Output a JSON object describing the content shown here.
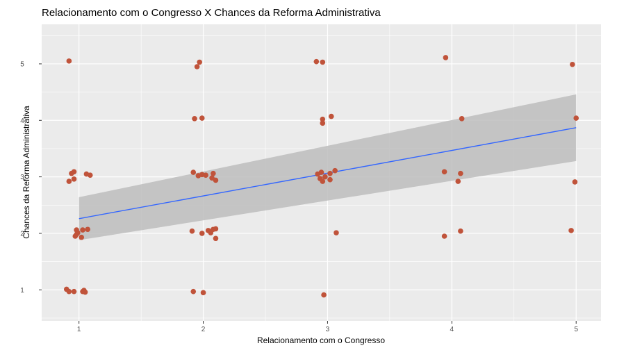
{
  "chart_data": {
    "type": "scatter",
    "title": "Relacionamento com o Congresso X Chances da Reforma Administrativa",
    "xlabel": "Relacionamento com o Congresso",
    "ylabel": "Chances da Reforma Administrativa",
    "xlim": [
      0.7,
      5.2
    ],
    "ylim": [
      0.45,
      5.7
    ],
    "x_ticks": [
      "1",
      "2",
      "3",
      "4",
      "5"
    ],
    "y_ticks": [
      "1",
      "2",
      "3",
      "4",
      "5"
    ],
    "grid": true,
    "colors": {
      "panel": "#ebebeb",
      "grid": "#ffffff",
      "points": "#c0533a",
      "fit_line": "#3366ff",
      "ribbon": "#bdbdbd"
    },
    "fit": {
      "method": "linear",
      "x": [
        1,
        5
      ],
      "y": [
        2.26,
        3.87
      ],
      "ci_lower": [
        1.88,
        3.28
      ],
      "ci_upper": [
        2.64,
        4.46
      ]
    },
    "points": [
      {
        "x": 0.92,
        "y": 5.05
      },
      {
        "x": 0.92,
        "y": 2.92
      },
      {
        "x": 0.94,
        "y": 3.06
      },
      {
        "x": 0.96,
        "y": 3.09
      },
      {
        "x": 0.96,
        "y": 2.96
      },
      {
        "x": 0.97,
        "y": 1.95
      },
      {
        "x": 0.98,
        "y": 2.06
      },
      {
        "x": 0.98,
        "y": 1.98
      },
      {
        "x": 0.99,
        "y": 2.01
      },
      {
        "x": 1.02,
        "y": 1.93
      },
      {
        "x": 1.03,
        "y": 2.06
      },
      {
        "x": 1.07,
        "y": 2.07
      },
      {
        "x": 1.06,
        "y": 3.05
      },
      {
        "x": 1.09,
        "y": 3.03
      },
      {
        "x": 0.9,
        "y": 1.01
      },
      {
        "x": 0.92,
        "y": 0.97
      },
      {
        "x": 0.96,
        "y": 0.97
      },
      {
        "x": 1.03,
        "y": 0.97
      },
      {
        "x": 1.04,
        "y": 0.99
      },
      {
        "x": 1.05,
        "y": 0.96
      },
      {
        "x": 1.97,
        "y": 5.03
      },
      {
        "x": 1.95,
        "y": 4.95
      },
      {
        "x": 1.93,
        "y": 4.03
      },
      {
        "x": 1.99,
        "y": 4.04
      },
      {
        "x": 1.92,
        "y": 3.08
      },
      {
        "x": 1.96,
        "y": 3.02
      },
      {
        "x": 1.99,
        "y": 3.04
      },
      {
        "x": 2.02,
        "y": 3.03
      },
      {
        "x": 2.07,
        "y": 2.98
      },
      {
        "x": 2.08,
        "y": 3.06
      },
      {
        "x": 2.1,
        "y": 2.94
      },
      {
        "x": 1.91,
        "y": 2.04
      },
      {
        "x": 1.99,
        "y": 2.0
      },
      {
        "x": 2.04,
        "y": 2.05
      },
      {
        "x": 2.06,
        "y": 2.01
      },
      {
        "x": 2.08,
        "y": 2.07
      },
      {
        "x": 2.1,
        "y": 2.08
      },
      {
        "x": 2.1,
        "y": 1.91
      },
      {
        "x": 1.92,
        "y": 0.97
      },
      {
        "x": 2.0,
        "y": 0.95
      },
      {
        "x": 2.91,
        "y": 5.04
      },
      {
        "x": 2.96,
        "y": 5.03
      },
      {
        "x": 2.96,
        "y": 4.02
      },
      {
        "x": 2.96,
        "y": 3.95
      },
      {
        "x": 3.03,
        "y": 4.07
      },
      {
        "x": 2.92,
        "y": 3.05
      },
      {
        "x": 2.95,
        "y": 3.08
      },
      {
        "x": 2.94,
        "y": 2.97
      },
      {
        "x": 2.96,
        "y": 2.92
      },
      {
        "x": 2.98,
        "y": 3.0
      },
      {
        "x": 3.02,
        "y": 3.06
      },
      {
        "x": 3.02,
        "y": 2.95
      },
      {
        "x": 3.06,
        "y": 3.11
      },
      {
        "x": 3.07,
        "y": 2.01
      },
      {
        "x": 2.97,
        "y": 0.91
      },
      {
        "x": 3.95,
        "y": 5.11
      },
      {
        "x": 4.08,
        "y": 4.03
      },
      {
        "x": 3.94,
        "y": 3.09
      },
      {
        "x": 4.07,
        "y": 3.06
      },
      {
        "x": 4.05,
        "y": 2.92
      },
      {
        "x": 3.94,
        "y": 1.95
      },
      {
        "x": 4.07,
        "y": 2.04
      },
      {
        "x": 4.97,
        "y": 4.99
      },
      {
        "x": 5.0,
        "y": 4.04
      },
      {
        "x": 4.99,
        "y": 2.91
      },
      {
        "x": 4.96,
        "y": 2.05
      }
    ]
  }
}
